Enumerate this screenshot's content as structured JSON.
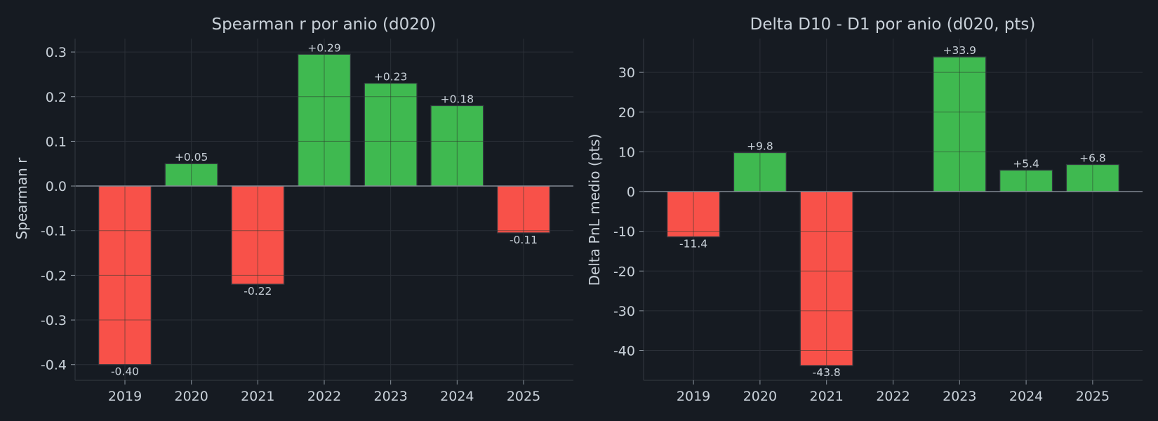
{
  "colors": {
    "background": "#161b22",
    "text": "#c9d1d9",
    "positive": "#3fb950",
    "negative": "#f85149",
    "grid": "#2a2f37",
    "spine": "#30363d",
    "zero_line": "#8b949e"
  },
  "chart_data": [
    {
      "type": "bar",
      "title": "Spearman r por anio (d020)",
      "xlabel": "",
      "ylabel": "Spearman r",
      "categories": [
        "2019",
        "2020",
        "2021",
        "2022",
        "2023",
        "2024",
        "2025"
      ],
      "values": [
        -0.4,
        0.05,
        -0.22,
        0.295,
        0.23,
        0.18,
        -0.105
      ],
      "data_labels": [
        "-0.40",
        "+0.05",
        "-0.22",
        "+0.29",
        "+0.23",
        "+0.18",
        "-0.11"
      ],
      "ylim": [
        -0.435,
        0.33
      ],
      "yticks": [
        -0.4,
        -0.3,
        -0.2,
        -0.1,
        0.0,
        0.1,
        0.2,
        0.3
      ],
      "ytick_labels": [
        "-0.4",
        "-0.3",
        "-0.2",
        "-0.1",
        "0.0",
        "0.1",
        "0.2",
        "0.3"
      ],
      "grid": true,
      "legend": "none"
    },
    {
      "type": "bar",
      "title": "Delta D10 - D1 por anio (d020, pts)",
      "xlabel": "",
      "ylabel": "Delta PnL medio (pts)",
      "categories": [
        "2019",
        "2020",
        "2021",
        "2022",
        "2023",
        "2024",
        "2025"
      ],
      "values": [
        -11.4,
        9.8,
        -43.8,
        null,
        33.9,
        5.4,
        6.8
      ],
      "data_labels": [
        "-11.4",
        "+9.8",
        "-43.8",
        "",
        "+33.9",
        "+5.4",
        "+6.8"
      ],
      "ylim": [
        -47.5,
        38.5
      ],
      "yticks": [
        -40,
        -30,
        -20,
        -10,
        0,
        10,
        20,
        30
      ],
      "ytick_labels": [
        "-40",
        "-30",
        "-20",
        "-10",
        "0",
        "10",
        "20",
        "30"
      ],
      "grid": true,
      "legend": "none"
    }
  ]
}
